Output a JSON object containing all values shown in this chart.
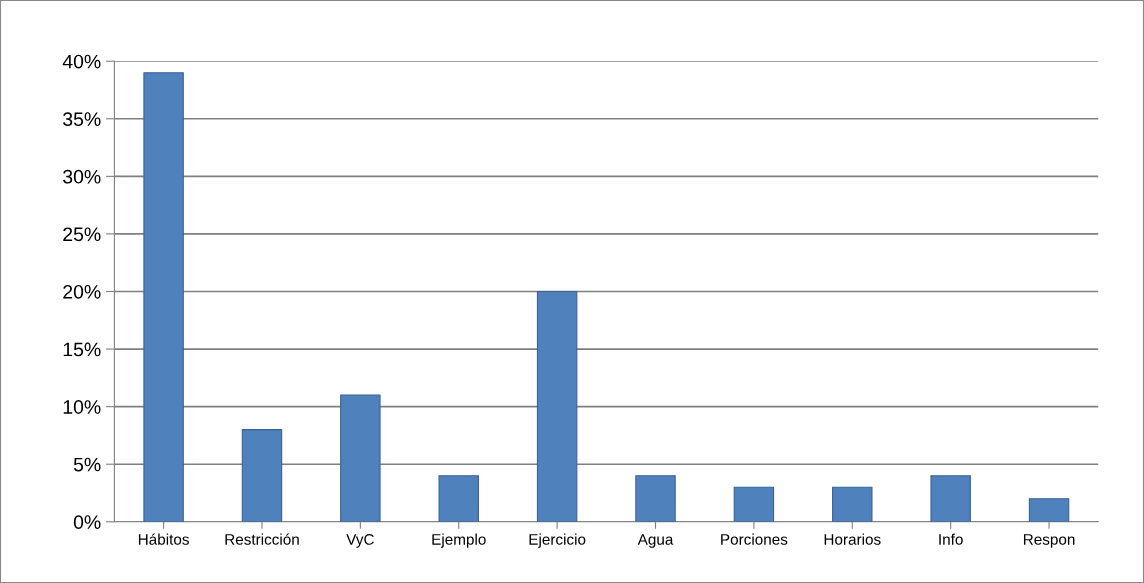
{
  "chart_data": {
    "type": "bar",
    "categories": [
      "Hábitos",
      "Restricción",
      "VyC",
      "Ejemplo",
      "Ejercicio",
      "Agua",
      "Porciones",
      "Horarios",
      "Info",
      "Respon"
    ],
    "values": [
      39,
      8,
      11,
      4,
      20,
      4,
      3,
      3,
      4,
      2
    ],
    "color": "#4f81bd",
    "ylim": [
      0,
      40
    ],
    "yticks": [
      {
        "value": 0,
        "label": "0%"
      },
      {
        "value": 5,
        "label": "5%"
      },
      {
        "value": 10,
        "label": "10%"
      },
      {
        "value": 15,
        "label": "15%"
      },
      {
        "value": 20,
        "label": "20%"
      },
      {
        "value": 25,
        "label": "25%"
      },
      {
        "value": 30,
        "label": "30%"
      },
      {
        "value": 35,
        "label": "35%"
      },
      {
        "value": 40,
        "label": "40%"
      }
    ],
    "grid": "y",
    "legend": false
  }
}
